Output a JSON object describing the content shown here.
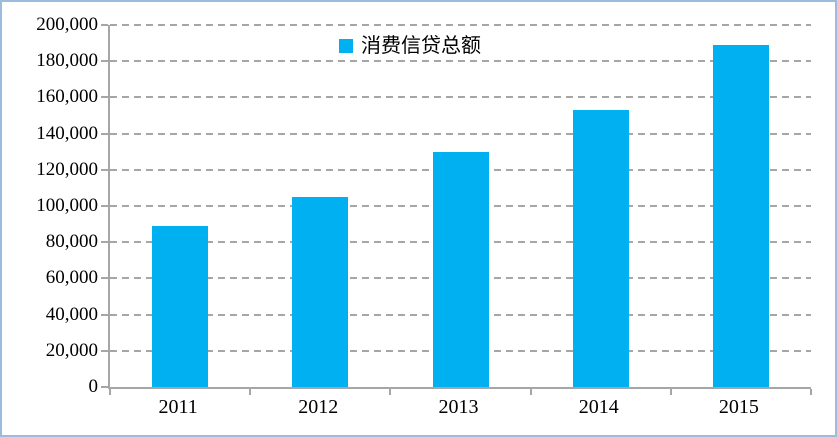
{
  "chart_data": {
    "type": "bar",
    "title": "",
    "categories": [
      "2011",
      "2012",
      "2013",
      "2014",
      "2015"
    ],
    "values": [
      89000,
      105000,
      130000,
      153000,
      189000
    ],
    "series_name": "消费信贷总额",
    "xlabel": "",
    "ylabel": "",
    "ylim": [
      0,
      200000
    ],
    "ytick_step": 20000,
    "ytick_labels": [
      "0",
      "20,000",
      "40,000",
      "60,000",
      "80,000",
      "100,000",
      "120,000",
      "140,000",
      "160,000",
      "180,000",
      "200,000"
    ],
    "grid": "horizontal-dashed",
    "legend_position": "top-center-inside",
    "bar_color": "#00b0f0"
  },
  "colors": {
    "bar": "#00b0f0",
    "gridline": "#a6a6a6",
    "axis": "#a6a6a6",
    "frame_border": "#9dbcdd",
    "text": "#000000"
  },
  "legend": {
    "label": "消费信贷总额"
  }
}
